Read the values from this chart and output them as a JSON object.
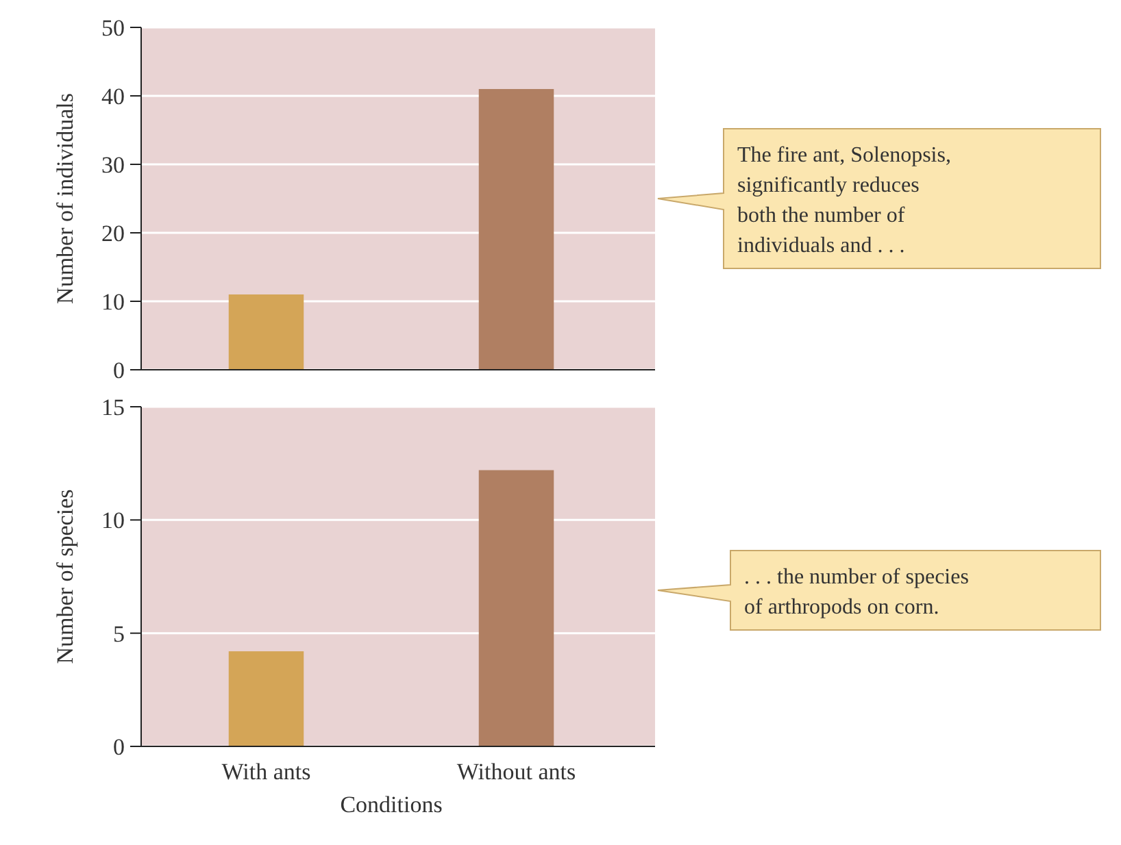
{
  "chart_data": [
    {
      "type": "bar",
      "ylabel": "Number of individuals",
      "categories": [
        null,
        null
      ],
      "values": [
        11,
        41
      ],
      "colors": [
        "#d4a557",
        "#b07f62"
      ],
      "ylim": [
        0,
        50
      ],
      "yticks": [
        0,
        10,
        20,
        30,
        40,
        50
      ],
      "grid": "y",
      "annotations": [
        "The fire ant, Solenopsis, significantly reduces both the number of individuals and . . ."
      ]
    },
    {
      "type": "bar",
      "xlabel": "Conditions",
      "ylabel": "Number of species",
      "categories": [
        "With ants",
        "Without ants"
      ],
      "values": [
        4.2,
        12.2
      ],
      "colors": [
        "#d4a557",
        "#b07f62"
      ],
      "ylim": [
        0,
        15
      ],
      "yticks": [
        0,
        5,
        10,
        15
      ],
      "grid": "y",
      "annotations": [
        ". . . the number of species of arthropods on corn."
      ]
    }
  ]
}
